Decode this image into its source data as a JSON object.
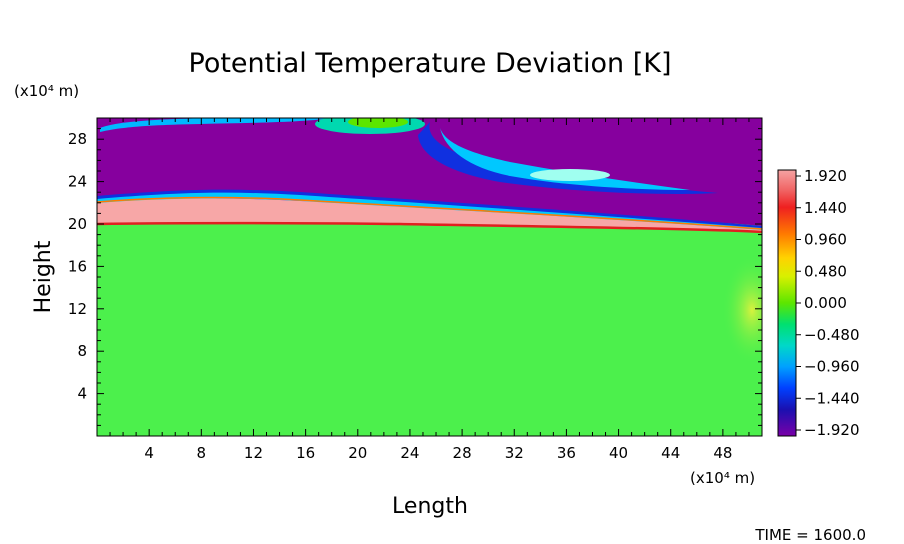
{
  "chart_data": {
    "type": "heatmap",
    "title": "Potential Temperature Deviation [K]",
    "xlabel": "Length",
    "ylabel": "Height",
    "x_unit": "(x10⁴ m)",
    "y_unit": "(x10⁴ m)",
    "xlim": [
      0,
      51
    ],
    "ylim": [
      0,
      30
    ],
    "xticks": [
      "4",
      "8",
      "12",
      "16",
      "20",
      "24",
      "28",
      "32",
      "36",
      "40",
      "44",
      "48"
    ],
    "yticks": [
      "4",
      "8",
      "12",
      "16",
      "20",
      "24",
      "28"
    ],
    "colorbar": {
      "labels": [
        "1.920",
        "1.440",
        "0.960",
        "0.480",
        "0.000",
        "−0.480",
        "−0.960",
        "−1.440",
        "−1.920"
      ],
      "values": [
        1.92,
        1.44,
        0.96,
        0.48,
        0.0,
        -0.48,
        -0.96,
        -1.44,
        -1.92
      ],
      "colors": [
        "#f5a3a3",
        "#ef2020",
        "#ff8c00",
        "#ffe800",
        "#6fe600",
        "#00e090",
        "#00c8ff",
        "#0040ff",
        "#7a00a8"
      ]
    },
    "regions": [
      {
        "name": "lower",
        "value": 0.0,
        "color": "#4cf04c"
      },
      {
        "name": "warm-band",
        "value": 1.92,
        "color": "#f7a7a7"
      },
      {
        "name": "upper",
        "value": -1.92,
        "color": "#86009e"
      }
    ],
    "footer": "TIME = 1600.0"
  }
}
